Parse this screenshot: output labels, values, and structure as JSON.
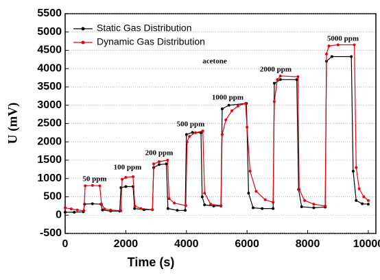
{
  "chart_data": {
    "type": "line",
    "xlabel": "Time (s)",
    "ylabel": "U (mV)",
    "xlim": [
      0,
      10250
    ],
    "ylim": [
      -500,
      5500
    ],
    "xticks": [
      0,
      2000,
      4000,
      6000,
      8000,
      10000
    ],
    "yticks": [
      -500,
      0,
      500,
      1000,
      1500,
      2000,
      2500,
      3000,
      3500,
      4000,
      4500,
      5000,
      5500
    ],
    "grid": true,
    "legend": "upper left",
    "annotations": [
      "50 ppm",
      "100 ppm",
      "200 ppm",
      "500 ppm",
      "1000 ppm",
      "2000 ppm",
      "5000 ppm",
      "acetone"
    ],
    "series": [
      {
        "name": "Static Gas Distribution",
        "color": "#000000",
        "x": [
          0,
          300,
          600,
          640,
          900,
          1180,
          1230,
          1500,
          1800,
          1840,
          2000,
          2240,
          2290,
          2600,
          2880,
          2920,
          3100,
          3340,
          3390,
          3700,
          3960,
          4000,
          4200,
          4480,
          4520,
          4600,
          4900,
          5140,
          5180,
          5400,
          5980,
          6050,
          6200,
          6500,
          6860,
          6900,
          7100,
          7640,
          7700,
          7800,
          8200,
          8580,
          8620,
          8800,
          9440,
          9500,
          9600,
          9800,
          10000
        ],
        "values": [
          80,
          80,
          90,
          300,
          310,
          300,
          140,
          110,
          110,
          750,
          780,
          780,
          180,
          150,
          150,
          1300,
          1380,
          1400,
          180,
          130,
          130,
          2200,
          2260,
          2250,
          500,
          280,
          250,
          250,
          2900,
          3000,
          3050,
          600,
          200,
          180,
          180,
          3600,
          3700,
          3700,
          700,
          230,
          200,
          220,
          4200,
          4330,
          4330,
          1200,
          400,
          310,
          300
        ]
      },
      {
        "name": "Dynamic Gas Distribution",
        "color": "#e8000b",
        "x": [
          0,
          200,
          400,
          620,
          660,
          900,
          1140,
          1200,
          1300,
          1500,
          1840,
          1880,
          2000,
          2240,
          2300,
          2500,
          2880,
          2920,
          3100,
          3380,
          3430,
          3600,
          3980,
          4020,
          4100,
          4300,
          4540,
          4600,
          4800,
          5140,
          5180,
          5300,
          5500,
          5700,
          5950,
          6000,
          6100,
          6300,
          6600,
          6860,
          6900,
          7000,
          7100,
          7680,
          7720,
          7900,
          8200,
          8580,
          8620,
          8700,
          9000,
          9540,
          9600,
          9700,
          9850,
          10000
        ],
        "values": [
          200,
          170,
          140,
          120,
          800,
          810,
          800,
          300,
          170,
          140,
          120,
          980,
          1030,
          1050,
          250,
          180,
          150,
          1400,
          1460,
          1500,
          450,
          330,
          260,
          2000,
          2150,
          2250,
          2300,
          600,
          300,
          260,
          2200,
          2600,
          2850,
          2980,
          3050,
          2400,
          1200,
          650,
          420,
          350,
          3100,
          3700,
          3800,
          3780,
          700,
          400,
          300,
          250,
          4400,
          4620,
          4650,
          4650,
          1300,
          720,
          500,
          400
        ]
      }
    ]
  }
}
